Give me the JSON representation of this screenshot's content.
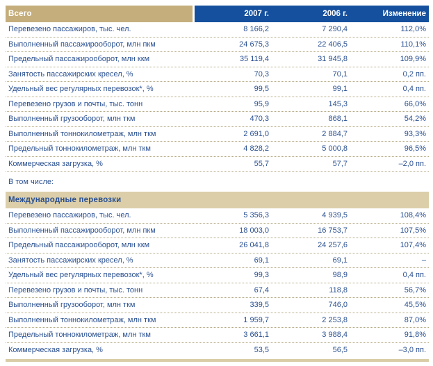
{
  "colors": {
    "header_blue": "#15509e",
    "header_tan": "#c5ae7c",
    "band_tan": "#dbcea9",
    "bottom_bar_tan": "#d9cca6",
    "text_navy": "#2b5191",
    "dotted_line": "#b1a77f"
  },
  "table": {
    "columns": [
      "2007 г.",
      "2006 г.",
      "Изменение"
    ],
    "between_label": "В том числе:",
    "sections": [
      {
        "title": "Всего",
        "rows": [
          {
            "label": "Перевезено пассажиров, тыс. чел.",
            "y2007": "8 166,2",
            "y2006": "7 290,4",
            "change": "112,0%"
          },
          {
            "label": "Выполненный пассажирооборот, млн пкм",
            "y2007": "24 675,3",
            "y2006": "22 406,5",
            "change": "110,1%"
          },
          {
            "label": "Предельный пассажирооборот, млн ккм",
            "y2007": "35 119,4",
            "y2006": "31 945,8",
            "change": "109,9%"
          },
          {
            "label": "Занятость пассажирских кресел, %",
            "y2007": "70,3",
            "y2006": "70,1",
            "change": "0,2 пп."
          },
          {
            "label": "Удельный вес регулярных перевозок*, %",
            "y2007": "99,5",
            "y2006": "99,1",
            "change": "0,4 пп."
          },
          {
            "label": "Перевезено грузов и почты, тыс. тонн",
            "y2007": "95,9",
            "y2006": "145,3",
            "change": "66,0%"
          },
          {
            "label": "Выполненный грузооборот, млн ткм",
            "y2007": "470,3",
            "y2006": "868,1",
            "change": "54,2%"
          },
          {
            "label": "Выполненный тоннокилометраж, млн ткм",
            "y2007": "2 691,0",
            "y2006": "2 884,7",
            "change": "93,3%"
          },
          {
            "label": "Предельный тоннокилометраж, млн ткм",
            "y2007": "4 828,2",
            "y2006": "5 000,8",
            "change": "96,5%"
          },
          {
            "label": "Коммерческая загрузка, %",
            "y2007": "55,7",
            "y2006": "57,7",
            "change": "–2,0 пп."
          }
        ]
      },
      {
        "title": "Международные перевозки",
        "rows": [
          {
            "label": "Перевезено пассажиров, тыс. чел.",
            "y2007": "5 356,3",
            "y2006": "4 939,5",
            "change": "108,4%"
          },
          {
            "label": "Выполненный пассажирооборот, млн пкм",
            "y2007": "18 003,0",
            "y2006": "16 753,7",
            "change": "107,5%"
          },
          {
            "label": "Предельный пассажирооборот, млн ккм",
            "y2007": "26 041,8",
            "y2006": "24 257,6",
            "change": "107,4%"
          },
          {
            "label": "Занятость пассажирских кресел, %",
            "y2007": "69,1",
            "y2006": "69,1",
            "change": "–"
          },
          {
            "label": "Удельный вес регулярных перевозок*, %",
            "y2007": "99,3",
            "y2006": "98,9",
            "change": "0,4 пп."
          },
          {
            "label": "Перевезено грузов и почты, тыс. тонн",
            "y2007": "67,4",
            "y2006": "118,8",
            "change": "56,7%"
          },
          {
            "label": "Выполненный грузооборот, млн ткм",
            "y2007": "339,5",
            "y2006": "746,0",
            "change": "45,5%"
          },
          {
            "label": "Выполненный тоннокилометраж, млн ткм",
            "y2007": "1 959,7",
            "y2006": "2 253,8",
            "change": "87,0%"
          },
          {
            "label": "Предельный тоннокилометраж, млн ткм",
            "y2007": "3 661,1",
            "y2006": "3 988,4",
            "change": "91,8%"
          },
          {
            "label": "Коммерческая загрузка, %",
            "y2007": "53,5",
            "y2006": "56,5",
            "change": "–3,0 пп."
          }
        ]
      }
    ]
  }
}
